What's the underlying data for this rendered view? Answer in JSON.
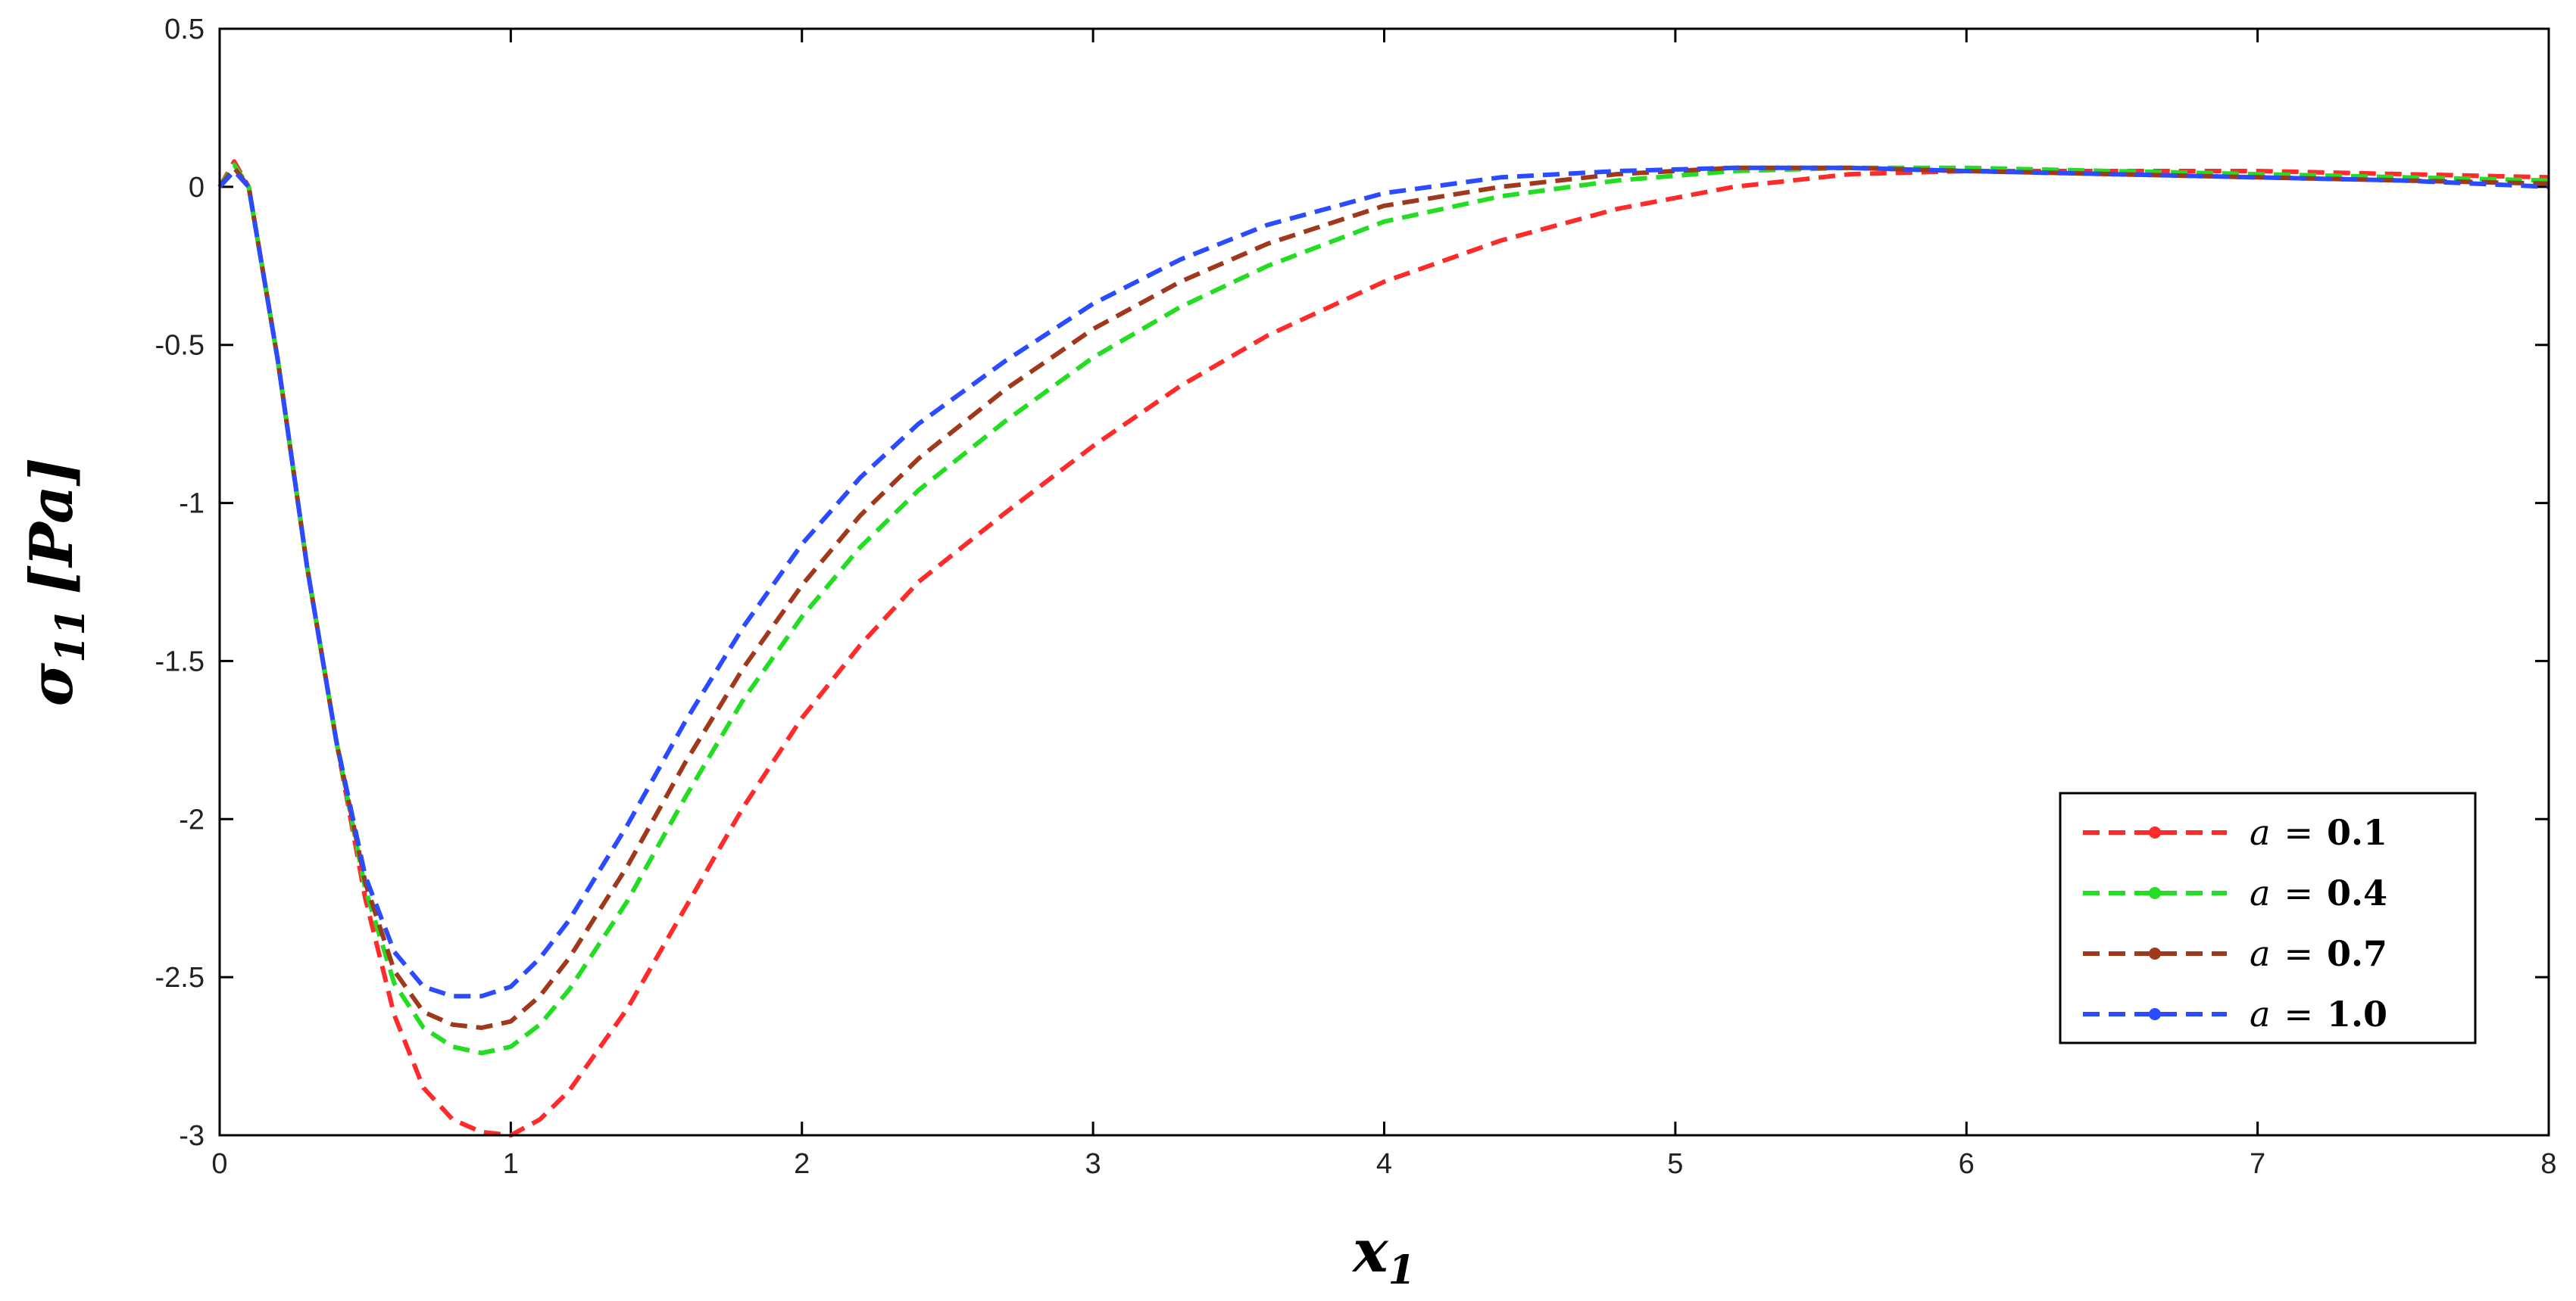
{
  "chart_data": {
    "type": "line",
    "title": "",
    "xlabel": {
      "base": "x",
      "sub": "1"
    },
    "ylabel": {
      "base": "σ",
      "sub": "11",
      "unit": "[Pa]"
    },
    "xlim": [
      0,
      8
    ],
    "ylim": [
      -3,
      0.5
    ],
    "xticks": [
      0,
      1,
      2,
      3,
      4,
      5,
      6,
      7,
      8
    ],
    "yticks": [
      0.5,
      0,
      -0.5,
      -1,
      -1.5,
      -2,
      -2.5,
      -3
    ],
    "xtick_labels": [
      "0",
      "1",
      "2",
      "3",
      "4",
      "5",
      "6",
      "7",
      "8"
    ],
    "ytick_labels": [
      "0.5",
      "0",
      "-0.5",
      "-1",
      "-1.5",
      "-2",
      "-2.5",
      "-3"
    ],
    "grid": false,
    "legend_position": "bottom-right",
    "x": [
      0,
      0.05,
      0.1,
      0.2,
      0.3,
      0.4,
      0.5,
      0.6,
      0.7,
      0.8,
      0.9,
      1.0,
      1.1,
      1.2,
      1.4,
      1.6,
      1.8,
      2.0,
      2.2,
      2.4,
      2.7,
      3.0,
      3.3,
      3.6,
      4.0,
      4.4,
      4.8,
      5.2,
      5.6,
      6.0,
      6.5,
      7.0,
      7.5,
      8.0
    ],
    "series": [
      {
        "name": "a = 0.1",
        "label_var": "a",
        "label_eq": "=",
        "label_val": "0.1",
        "color": "#ff2a2a",
        "values": [
          0.0,
          0.08,
          0.0,
          -0.55,
          -1.2,
          -1.75,
          -2.25,
          -2.62,
          -2.85,
          -2.95,
          -2.99,
          -3.0,
          -2.95,
          -2.86,
          -2.6,
          -2.28,
          -1.96,
          -1.68,
          -1.45,
          -1.25,
          -1.03,
          -0.82,
          -0.63,
          -0.47,
          -0.3,
          -0.17,
          -0.07,
          0.0,
          0.04,
          0.05,
          0.05,
          0.05,
          0.04,
          0.03
        ]
      },
      {
        "name": "a = 0.4",
        "label_var": "a",
        "label_eq": "=",
        "label_val": "0.4",
        "color": "#22dd22",
        "values": [
          0.0,
          0.07,
          0.0,
          -0.55,
          -1.2,
          -1.75,
          -2.22,
          -2.52,
          -2.66,
          -2.72,
          -2.74,
          -2.72,
          -2.65,
          -2.54,
          -2.26,
          -1.93,
          -1.62,
          -1.36,
          -1.14,
          -0.96,
          -0.74,
          -0.54,
          -0.38,
          -0.25,
          -0.11,
          -0.03,
          0.02,
          0.05,
          0.06,
          0.06,
          0.05,
          0.04,
          0.03,
          0.02
        ]
      },
      {
        "name": "a = 0.7",
        "label_var": "a",
        "label_eq": "=",
        "label_val": "0.7",
        "color": "#a0391c",
        "values": [
          0.0,
          0.06,
          0.0,
          -0.55,
          -1.2,
          -1.75,
          -2.2,
          -2.48,
          -2.61,
          -2.65,
          -2.66,
          -2.64,
          -2.56,
          -2.44,
          -2.15,
          -1.82,
          -1.52,
          -1.26,
          -1.04,
          -0.86,
          -0.64,
          -0.45,
          -0.3,
          -0.18,
          -0.06,
          0.0,
          0.04,
          0.06,
          0.06,
          0.05,
          0.04,
          0.03,
          0.02,
          0.01
        ]
      },
      {
        "name": "a = 1.0",
        "label_var": "a",
        "label_eq": "=",
        "label_val": "1.0",
        "color": "#2a4bff",
        "values": [
          0.0,
          0.05,
          0.0,
          -0.55,
          -1.2,
          -1.75,
          -2.18,
          -2.42,
          -2.53,
          -2.56,
          -2.56,
          -2.53,
          -2.44,
          -2.32,
          -2.02,
          -1.69,
          -1.39,
          -1.13,
          -0.92,
          -0.75,
          -0.55,
          -0.37,
          -0.23,
          -0.12,
          -0.02,
          0.03,
          0.05,
          0.06,
          0.06,
          0.05,
          0.04,
          0.03,
          0.02,
          0.0
        ]
      }
    ]
  }
}
